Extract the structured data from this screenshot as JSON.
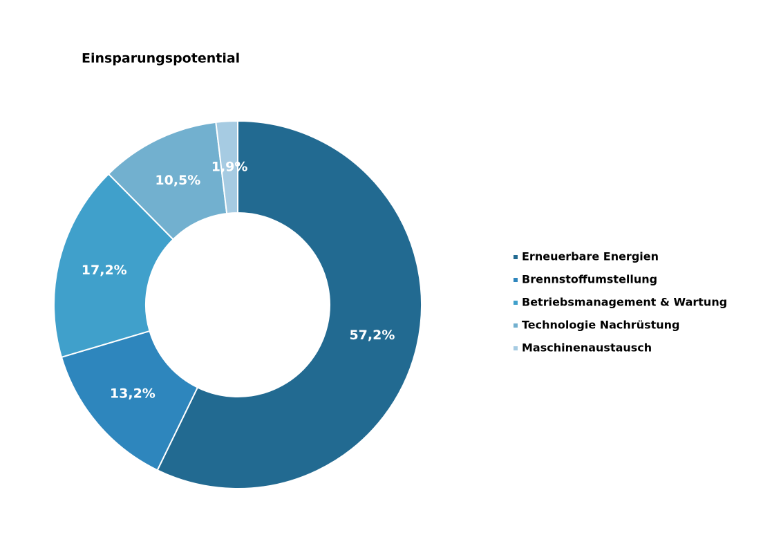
{
  "chart_data": {
    "type": "donut",
    "title": "Einsparungspotential",
    "categories": [
      "Erneuerbare Energien",
      "Brennstoffumstellung",
      "Betriebsmanagement & Wartung",
      "Technologie Nachrüstung",
      "Maschinenaustausch"
    ],
    "values": [
      57.2,
      13.2,
      17.2,
      10.5,
      1.9
    ],
    "value_labels": [
      "57,2%",
      "13,2%",
      "17,2%",
      "10,5%",
      "1,9%"
    ],
    "colors": [
      "#226a91",
      "#2e86bd",
      "#40a0cb",
      "#72b0cf",
      "#a6cbe2"
    ],
    "legend": "right"
  }
}
